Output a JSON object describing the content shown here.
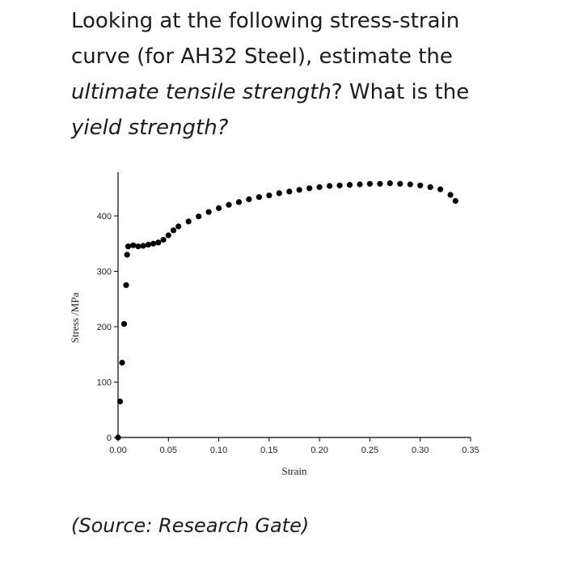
{
  "question": {
    "part1": "Looking at the following stress-strain curve (for AH32 Steel), estimate the ",
    "part2": "ultimate tensile strength",
    "part3": "? What is the ",
    "part4": "yield strength?"
  },
  "source": "(Source: Research Gate)",
  "chart_data": {
    "type": "scatter",
    "title": "",
    "xlabel": "Strain",
    "ylabel": "Stress /MPa",
    "xlim": [
      0,
      0.35
    ],
    "ylim": [
      0,
      420
    ],
    "xticks": [
      "0.00",
      "0.05",
      "0.10",
      "0.15",
      "0.20",
      "0.25",
      "0.30",
      "0.35"
    ],
    "yticks": [
      "0",
      "100",
      "200",
      "300",
      "400"
    ],
    "grid": false,
    "legend": "none",
    "marker_color": "#000000",
    "series": [
      {
        "x": [
          0.0,
          0.002,
          0.004,
          0.006,
          0.008,
          0.009,
          0.01,
          0.015,
          0.02,
          0.025,
          0.03,
          0.035,
          0.04,
          0.045,
          0.05,
          0.055,
          0.06,
          0.07,
          0.08,
          0.09,
          0.1,
          0.11,
          0.12,
          0.13,
          0.14,
          0.15,
          0.16,
          0.17,
          0.18,
          0.19,
          0.2,
          0.21,
          0.22,
          0.23,
          0.24,
          0.25,
          0.26,
          0.27,
          0.28,
          0.29,
          0.3,
          0.31,
          0.32,
          0.33,
          0.335
        ],
        "y": [
          0,
          65,
          135,
          205,
          275,
          330,
          345,
          347,
          345,
          346,
          348,
          350,
          352,
          357,
          365,
          374,
          381,
          390,
          399,
          407,
          414,
          420,
          425,
          430,
          434,
          437,
          441,
          444,
          447,
          450,
          452,
          454,
          455,
          456,
          457,
          458,
          458,
          459,
          458,
          457,
          455,
          452,
          448,
          438,
          427
        ]
      }
    ]
  }
}
